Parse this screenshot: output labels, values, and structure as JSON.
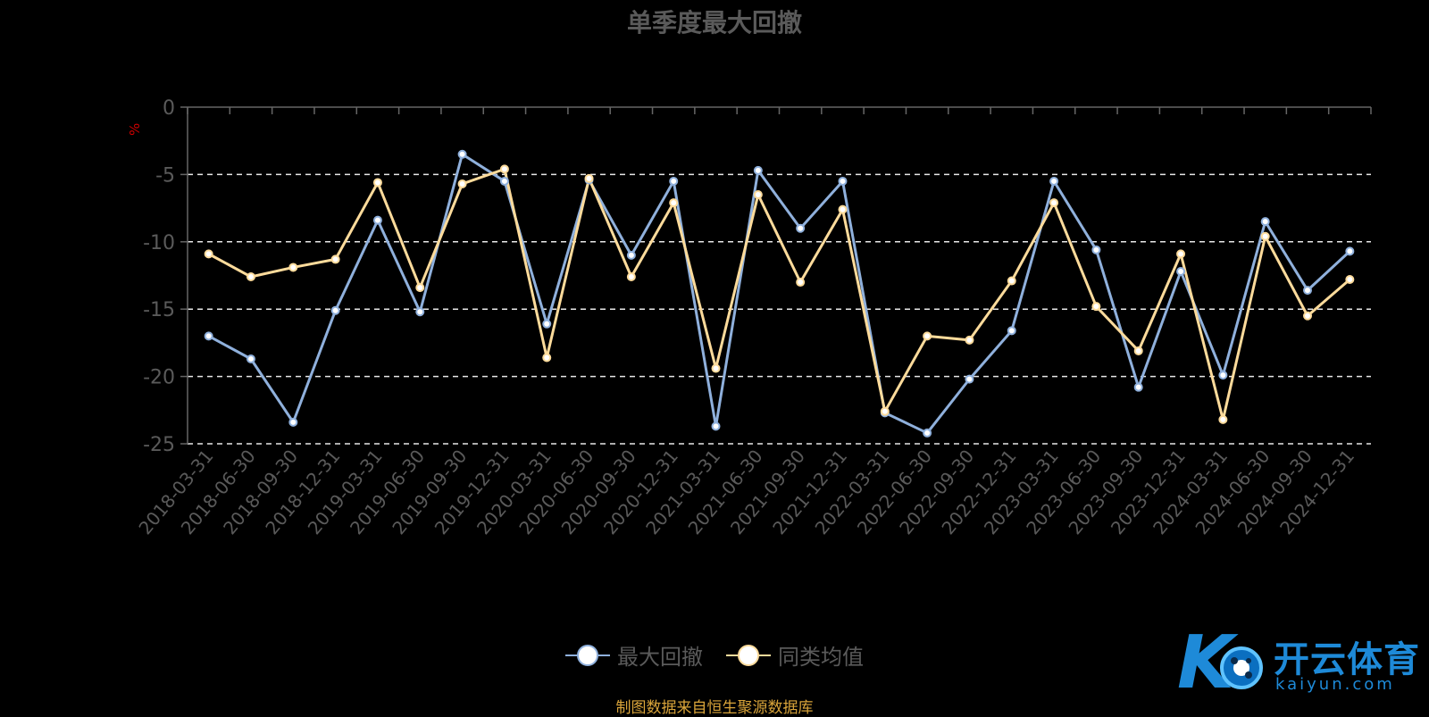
{
  "chart_data": {
    "type": "line",
    "title": "单季度最大回撤",
    "ylabel": "%",
    "xlabel": "",
    "ylim": [
      -25,
      0
    ],
    "yticks": [
      0,
      -5,
      -10,
      -15,
      -20,
      -25
    ],
    "grid": true,
    "legend_position": "bottom-center",
    "categories": [
      "2018-03-31",
      "2018-06-30",
      "2018-09-30",
      "2018-12-31",
      "2019-03-31",
      "2019-06-30",
      "2019-09-30",
      "2019-12-31",
      "2020-03-31",
      "2020-06-30",
      "2020-09-30",
      "2020-12-31",
      "2021-03-31",
      "2021-06-30",
      "2021-09-30",
      "2021-12-31",
      "2022-03-31",
      "2022-06-30",
      "2022-09-30",
      "2022-12-31",
      "2023-03-31",
      "2023-06-30",
      "2023-09-30",
      "2023-12-31",
      "2024-03-31",
      "2024-06-30",
      "2024-09-30",
      "2024-12-31"
    ],
    "series": [
      {
        "name": "最大回撤",
        "color": "#8fb0dc",
        "values": [
          -17.0,
          -18.7,
          -23.4,
          -15.1,
          -8.4,
          -15.2,
          -3.5,
          -5.5,
          -16.1,
          -5.4,
          -11.0,
          -5.5,
          -23.7,
          -4.7,
          -9.0,
          -5.5,
          -22.7,
          -24.2,
          -20.2,
          -16.6,
          -5.5,
          -10.6,
          -20.8,
          -12.2,
          -19.9,
          -8.5,
          -13.6,
          -10.7
        ]
      },
      {
        "name": "同类均值",
        "color": "#fddb9b",
        "values": [
          -10.9,
          -12.6,
          -11.9,
          -11.3,
          -5.6,
          -13.4,
          -5.7,
          -4.6,
          -18.6,
          -5.3,
          -12.6,
          -7.1,
          -19.4,
          -6.5,
          -13.0,
          -7.6,
          -22.6,
          -17.0,
          -17.3,
          -12.9,
          -7.1,
          -14.8,
          -18.1,
          -10.9,
          -23.2,
          -9.6,
          -15.5,
          -12.8
        ]
      }
    ]
  },
  "source_note": "制图数据来自恒生聚源数据库",
  "watermark": {
    "name": "开云体育",
    "domain": "kaiyun.com",
    "logo_text": "K"
  }
}
